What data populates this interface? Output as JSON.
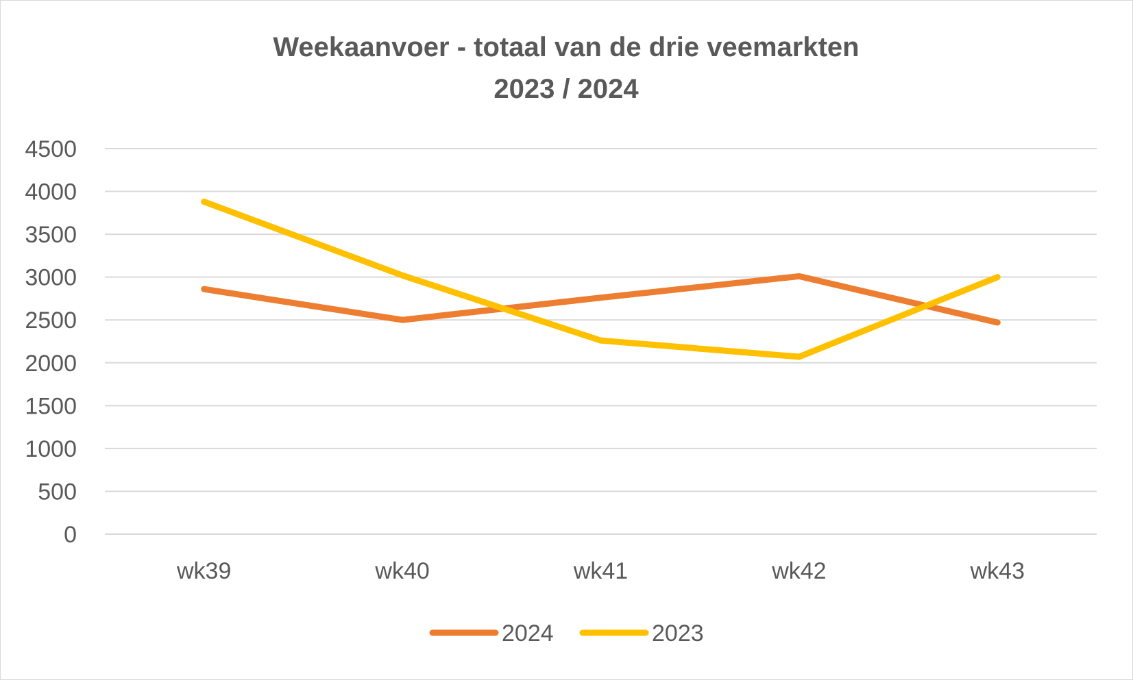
{
  "chart_data": {
    "type": "line",
    "title_lines": [
      "Weekaanvoer - totaal van de drie veemarkten",
      "2023 / 2024"
    ],
    "categories": [
      "wk39",
      "wk40",
      "wk41",
      "wk42",
      "wk43"
    ],
    "series": [
      {
        "name": "2024",
        "color": "#ed7d31",
        "values": [
          2860,
          2500,
          2760,
          3010,
          2470
        ]
      },
      {
        "name": "2023",
        "color": "#ffc000",
        "values": [
          3880,
          3020,
          2260,
          2070,
          3000
        ]
      }
    ],
    "ylim": [
      0,
      4500
    ],
    "yticks": [
      0,
      500,
      1000,
      1500,
      2000,
      2500,
      3000,
      3500,
      4000,
      4500
    ],
    "xlabel": "",
    "ylabel": "",
    "grid": true,
    "legend_position": "bottom"
  }
}
